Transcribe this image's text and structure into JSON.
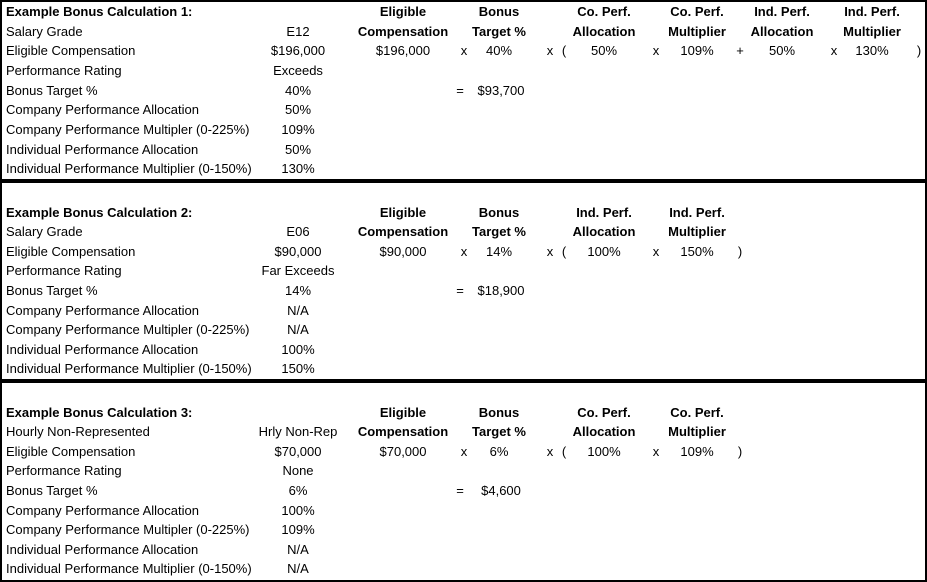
{
  "sections": [
    {
      "title": "Example Bonus Calculation 1:",
      "rows": [
        {
          "label": "Salary Grade",
          "value": "E12"
        },
        {
          "label": "Eligible Compensation",
          "value": "$196,000"
        },
        {
          "label": "Performance Rating",
          "value": "Exceeds"
        },
        {
          "label": "Bonus Target %",
          "value": "40%"
        },
        {
          "label": "Company Performance Allocation",
          "value": "50%"
        },
        {
          "label": "Company Performance Multipler (0-225%)",
          "value": "109%"
        },
        {
          "label": "Individual Performance Allocation",
          "value": "50%"
        },
        {
          "label": "Individual Performance Multiplier (0-150%)",
          "value": "130%"
        }
      ],
      "formula": {
        "headers": [
          {
            "line1": "Eligible",
            "line2": "Compensation"
          },
          {
            "line1": "Bonus",
            "line2": "Target %"
          },
          {
            "line1": "Co. Perf.",
            "line2": "Allocation"
          },
          {
            "line1": "Co. Perf.",
            "line2": "Multiplier"
          },
          {
            "line1": "Ind. Perf.",
            "line2": "Allocation"
          },
          {
            "line1": "Ind. Perf.",
            "line2": "Multiplier"
          }
        ],
        "tokens": {
          "comp": "$196,000",
          "x1": "x",
          "target": "40%",
          "x2": "x",
          "open": "(",
          "alloc1": "50%",
          "x3": "x",
          "mult1": "109%",
          "plus": "+",
          "alloc2": "50%",
          "x4": "x",
          "mult2": "130%",
          "close": ")"
        },
        "equals": "=",
        "result": "$93,700"
      }
    },
    {
      "title": "Example Bonus Calculation 2:",
      "rows": [
        {
          "label": "Salary Grade",
          "value": "E06"
        },
        {
          "label": "Eligible Compensation",
          "value": "$90,000"
        },
        {
          "label": "Performance Rating",
          "value": "Far Exceeds"
        },
        {
          "label": "Bonus Target %",
          "value": "14%"
        },
        {
          "label": "Company Performance Allocation",
          "value": "N/A"
        },
        {
          "label": "Company Performance Multipler (0-225%)",
          "value": "N/A"
        },
        {
          "label": "Individual Performance Allocation",
          "value": "100%"
        },
        {
          "label": "Individual Performance Multiplier (0-150%)",
          "value": "150%"
        }
      ],
      "formula": {
        "headers": [
          {
            "line1": "Eligible",
            "line2": "Compensation"
          },
          {
            "line1": "Bonus",
            "line2": "Target %"
          },
          {
            "line1": "Ind. Perf.",
            "line2": "Allocation"
          },
          {
            "line1": "Ind. Perf.",
            "line2": "Multiplier"
          }
        ],
        "tokens": {
          "comp": "$90,000",
          "x1": "x",
          "target": "14%",
          "x2": "x",
          "open": "(",
          "alloc1": "100%",
          "x3": "x",
          "mult1": "150%",
          "close": ")"
        },
        "equals": "=",
        "result": "$18,900"
      }
    },
    {
      "title": "Example Bonus Calculation 3:",
      "rows": [
        {
          "label": "Hourly Non-Represented",
          "value": "Hrly Non-Rep"
        },
        {
          "label": "Eligible Compensation",
          "value": "$70,000"
        },
        {
          "label": "Performance Rating",
          "value": "None"
        },
        {
          "label": "Bonus Target %",
          "value": "6%"
        },
        {
          "label": "Company Performance Allocation",
          "value": "100%"
        },
        {
          "label": "Company Performance Multipler (0-225%)",
          "value": "109%"
        },
        {
          "label": "Individual Performance Allocation",
          "value": "N/A"
        },
        {
          "label": "Individual Performance Multiplier (0-150%)",
          "value": "N/A"
        }
      ],
      "formula": {
        "headers": [
          {
            "line1": "Eligible",
            "line2": "Compensation"
          },
          {
            "line1": "Bonus",
            "line2": "Target %"
          },
          {
            "line1": "Co. Perf.",
            "line2": "Allocation"
          },
          {
            "line1": "Co. Perf.",
            "line2": "Multiplier"
          }
        ],
        "tokens": {
          "comp": "$70,000",
          "x1": "x",
          "target": "6%",
          "x2": "x",
          "open": "(",
          "alloc1": "100%",
          "x3": "x",
          "mult1": "109%",
          "close": ")"
        },
        "equals": "=",
        "result": "$4,600"
      }
    }
  ]
}
